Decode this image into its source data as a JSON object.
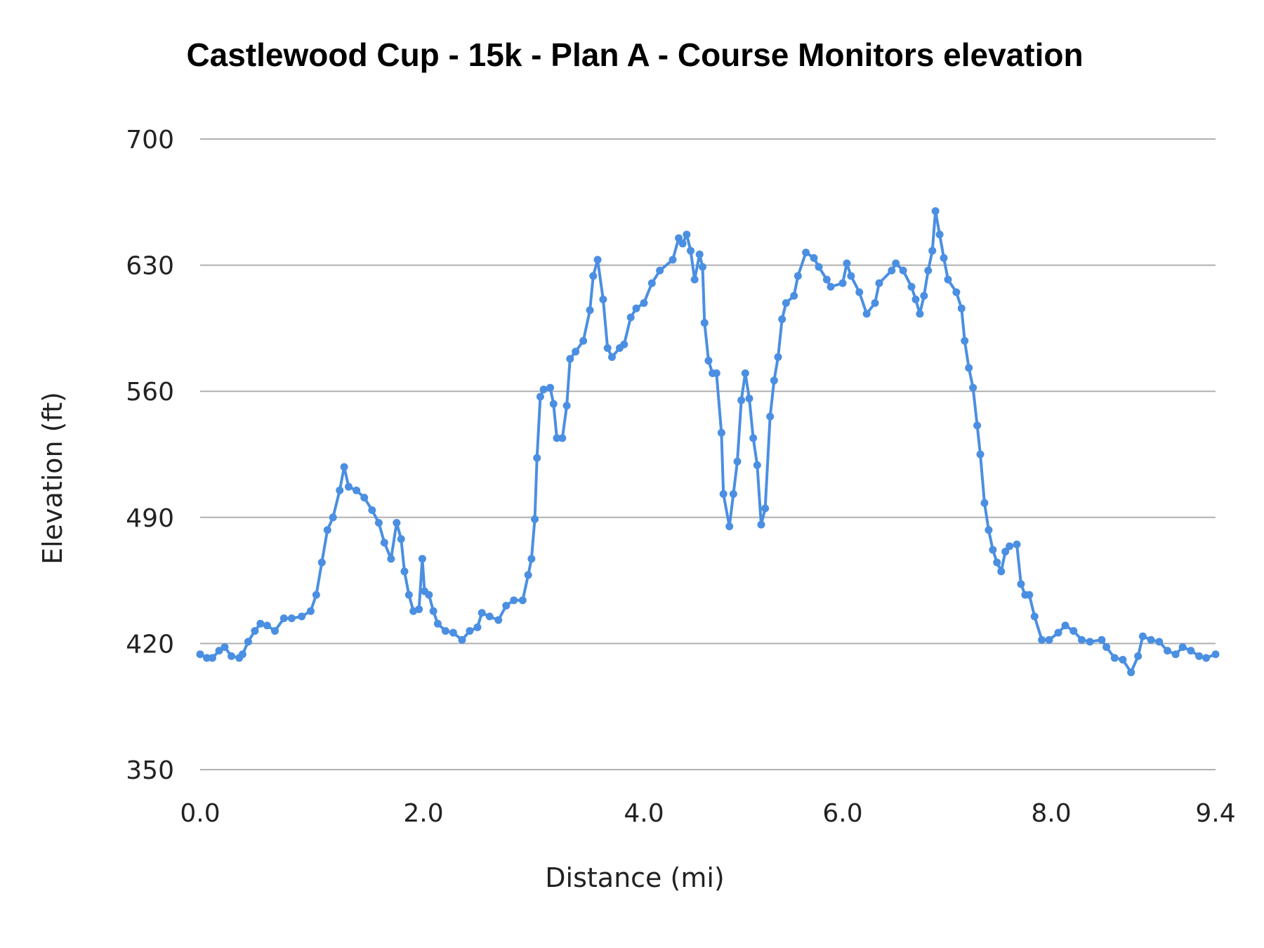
{
  "chart_data": {
    "type": "line",
    "title": "Castlewood Cup - 15k - Plan A - Course Monitors elevation",
    "xlabel": "Distance (mi)",
    "ylabel": "Elevation (ft)",
    "ylim": [
      350,
      700
    ],
    "yticks": [
      "350",
      "420",
      "490",
      "560",
      "630",
      "700"
    ],
    "xticks": [
      "0.0",
      "2.0",
      "4.0",
      "6.0",
      "8.0",
      "9.4"
    ],
    "grid": "horizontal",
    "legend": "none",
    "markers": true,
    "color": "#4a8fe2",
    "points": [
      [
        0,
        414
      ],
      [
        0.06,
        412
      ],
      [
        0.11,
        412
      ],
      [
        0.17,
        416
      ],
      [
        0.22,
        418
      ],
      [
        0.28,
        413
      ],
      [
        0.35,
        412
      ],
      [
        0.38,
        414
      ],
      [
        0.43,
        421
      ],
      [
        0.49,
        427
      ],
      [
        0.54,
        431
      ],
      [
        0.6,
        430
      ],
      [
        0.67,
        427
      ],
      [
        0.75,
        434
      ],
      [
        0.82,
        434
      ],
      [
        0.91,
        435
      ],
      [
        0.99,
        438
      ],
      [
        1.04,
        447
      ],
      [
        1.09,
        465
      ],
      [
        1.14,
        483
      ],
      [
        1.19,
        490
      ],
      [
        1.25,
        505
      ],
      [
        1.29,
        518
      ],
      [
        1.33,
        507
      ],
      [
        1.4,
        505
      ],
      [
        1.47,
        501
      ],
      [
        1.54,
        494
      ],
      [
        1.6,
        487
      ],
      [
        1.65,
        476
      ],
      [
        1.71,
        467
      ],
      [
        1.76,
        487
      ],
      [
        1.8,
        478
      ],
      [
        1.83,
        460
      ],
      [
        1.87,
        447
      ],
      [
        1.91,
        438
      ],
      [
        1.96,
        439
      ],
      [
        1.99,
        467
      ],
      [
        2.01,
        449
      ],
      [
        2.05,
        447
      ],
      [
        2.09,
        438
      ],
      [
        2.13,
        431
      ],
      [
        2.2,
        427
      ],
      [
        2.27,
        426
      ],
      [
        2.35,
        422
      ],
      [
        2.42,
        427
      ],
      [
        2.49,
        429
      ],
      [
        2.53,
        437
      ],
      [
        2.6,
        435
      ],
      [
        2.68,
        433
      ],
      [
        2.75,
        441
      ],
      [
        2.82,
        444
      ],
      [
        2.9,
        444
      ],
      [
        2.95,
        458
      ],
      [
        2.98,
        467
      ],
      [
        3.01,
        489
      ],
      [
        3.03,
        523
      ],
      [
        3.06,
        557
      ],
      [
        3.09,
        561
      ],
      [
        3.15,
        562
      ],
      [
        3.18,
        553
      ],
      [
        3.21,
        534
      ],
      [
        3.26,
        534
      ],
      [
        3.3,
        552
      ],
      [
        3.33,
        578
      ],
      [
        3.38,
        582
      ],
      [
        3.45,
        588
      ],
      [
        3.51,
        605
      ],
      [
        3.54,
        624
      ],
      [
        3.58,
        633
      ],
      [
        3.63,
        611
      ],
      [
        3.67,
        584
      ],
      [
        3.71,
        579
      ],
      [
        3.78,
        584
      ],
      [
        3.82,
        586
      ],
      [
        3.88,
        601
      ],
      [
        3.93,
        606
      ],
      [
        4.0,
        609
      ],
      [
        4.08,
        620
      ],
      [
        4.16,
        627
      ],
      [
        4.29,
        633
      ],
      [
        4.35,
        645
      ],
      [
        4.39,
        642
      ],
      [
        4.43,
        647
      ],
      [
        4.47,
        638
      ],
      [
        4.51,
        622
      ],
      [
        4.56,
        636
      ],
      [
        4.59,
        629
      ],
      [
        4.61,
        598
      ],
      [
        4.65,
        577
      ],
      [
        4.69,
        570
      ],
      [
        4.73,
        570
      ],
      [
        4.78,
        537
      ],
      [
        4.8,
        503
      ],
      [
        4.86,
        485
      ],
      [
        4.9,
        503
      ],
      [
        4.94,
        521
      ],
      [
        4.98,
        555
      ],
      [
        5.02,
        570
      ],
      [
        5.06,
        556
      ],
      [
        5.1,
        534
      ],
      [
        5.14,
        519
      ],
      [
        5.18,
        486
      ],
      [
        5.22,
        495
      ],
      [
        5.27,
        546
      ],
      [
        5.31,
        566
      ],
      [
        5.35,
        579
      ],
      [
        5.39,
        600
      ],
      [
        5.43,
        609
      ],
      [
        5.51,
        613
      ],
      [
        5.55,
        624
      ],
      [
        5.63,
        637
      ],
      [
        5.71,
        634
      ],
      [
        5.76,
        629
      ],
      [
        5.84,
        622
      ],
      [
        5.88,
        618
      ],
      [
        6.0,
        620
      ],
      [
        6.04,
        631
      ],
      [
        6.08,
        624
      ],
      [
        6.16,
        615
      ],
      [
        6.23,
        603
      ],
      [
        6.31,
        609
      ],
      [
        6.35,
        620
      ],
      [
        6.47,
        627
      ],
      [
        6.51,
        631
      ],
      [
        6.58,
        627
      ],
      [
        6.66,
        618
      ],
      [
        6.7,
        611
      ],
      [
        6.74,
        603
      ],
      [
        6.78,
        613
      ],
      [
        6.82,
        627
      ],
      [
        6.86,
        638
      ],
      [
        6.89,
        660
      ],
      [
        6.93,
        647
      ],
      [
        6.97,
        634
      ],
      [
        7.01,
        622
      ],
      [
        7.09,
        615
      ],
      [
        7.14,
        606
      ],
      [
        7.17,
        588
      ],
      [
        7.21,
        573
      ],
      [
        7.25,
        562
      ],
      [
        7.29,
        541
      ],
      [
        7.32,
        525
      ],
      [
        7.36,
        498
      ],
      [
        7.4,
        483
      ],
      [
        7.44,
        472
      ],
      [
        7.48,
        465
      ],
      [
        7.52,
        460
      ],
      [
        7.56,
        471
      ],
      [
        7.6,
        474
      ],
      [
        7.67,
        475
      ],
      [
        7.71,
        453
      ],
      [
        7.75,
        447
      ],
      [
        7.79,
        447
      ],
      [
        7.84,
        435
      ],
      [
        7.91,
        422
      ],
      [
        7.98,
        422
      ],
      [
        8.06,
        426
      ],
      [
        8.12,
        430
      ],
      [
        8.19,
        427
      ],
      [
        8.26,
        422
      ],
      [
        8.33,
        421
      ],
      [
        8.43,
        422
      ],
      [
        8.47,
        418
      ],
      [
        8.54,
        412
      ],
      [
        8.61,
        411
      ],
      [
        8.68,
        404
      ],
      [
        8.74,
        413
      ],
      [
        8.78,
        424
      ],
      [
        8.85,
        422
      ],
      [
        8.92,
        421
      ],
      [
        8.99,
        416
      ],
      [
        9.06,
        414
      ],
      [
        9.12,
        418
      ],
      [
        9.19,
        416
      ],
      [
        9.26,
        413
      ],
      [
        9.32,
        412
      ],
      [
        9.4,
        414
      ]
    ]
  }
}
